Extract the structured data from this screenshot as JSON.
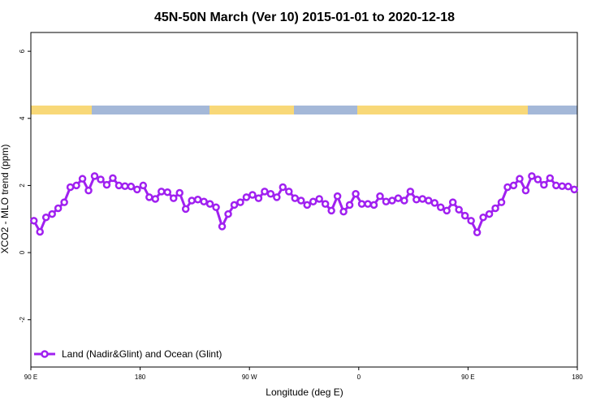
{
  "chart_data": {
    "type": "line",
    "title": "45N-50N March (Ver 10)   2015-01-01 to 2020-12-18",
    "x_label": "Longitude (deg E)",
    "y_label": "XCO2 - MLO trend (ppm)",
    "xlim": [
      90,
      540
    ],
    "xticks": [
      {
        "value": 90,
        "label": "90 E"
      },
      {
        "value": 180,
        "label": "180"
      },
      {
        "value": 270,
        "label": "90 W"
      },
      {
        "value": 360,
        "label": "0"
      },
      {
        "value": 450,
        "label": "90 E"
      },
      {
        "value": 540,
        "label": "180"
      }
    ],
    "ylim": [
      -3.41,
      6.56
    ],
    "yticks": [
      -2,
      0,
      2,
      4,
      6
    ],
    "legend": "bottom-left",
    "x": [
      92.5,
      97.5,
      102.5,
      107.5,
      112.5,
      117.5,
      122.5,
      127.5,
      132.5,
      137.5,
      142.5,
      147.5,
      152.5,
      157.5,
      162.5,
      167.5,
      172.5,
      177.5,
      182.5,
      187.5,
      192.5,
      197.5,
      202.5,
      207.5,
      212.5,
      217.5,
      222.5,
      227.5,
      232.5,
      237.5,
      242.5,
      247.5,
      252.5,
      257.5,
      262.5,
      267.5,
      272.5,
      277.5,
      282.5,
      287.5,
      292.5,
      297.5,
      302.5,
      307.5,
      312.5,
      317.5,
      322.5,
      327.5,
      332.5,
      337.5,
      342.5,
      347.5,
      352.5,
      357.5,
      362.5,
      367.5,
      372.5,
      377.5,
      382.5,
      387.5,
      392.5,
      397.5,
      402.5,
      407.5,
      412.5,
      417.5,
      422.5,
      427.5,
      432.5,
      437.5,
      442.5,
      447.5,
      452.5,
      457.5,
      462.5,
      467.5,
      472.5,
      477.5,
      482.5,
      487.5,
      492.5,
      497.5,
      502.5,
      507.5,
      512.5,
      517.5,
      522.5,
      527.5,
      532.5,
      537.5
    ],
    "series": [
      {
        "name": "Land (Nadir&Glint) and Ocean (Glint)",
        "color": "#a020f0",
        "values": [
          0.95,
          0.62,
          1.05,
          1.15,
          1.32,
          1.5,
          1.95,
          2.0,
          2.2,
          1.85,
          2.28,
          2.18,
          2.02,
          2.22,
          2.0,
          1.98,
          1.97,
          1.88,
          2.0,
          1.65,
          1.6,
          1.82,
          1.8,
          1.62,
          1.78,
          1.3,
          1.55,
          1.58,
          1.52,
          1.45,
          1.35,
          0.78,
          1.15,
          1.42,
          1.5,
          1.65,
          1.72,
          1.62,
          1.82,
          1.75,
          1.65,
          1.95,
          1.82,
          1.62,
          1.55,
          1.42,
          1.52,
          1.6,
          1.45,
          1.25,
          1.68,
          1.22,
          1.42,
          1.75,
          1.45,
          1.45,
          1.42,
          1.68,
          1.52,
          1.55,
          1.62,
          1.55,
          1.82,
          1.58,
          1.6,
          1.55,
          1.48,
          1.35,
          1.25,
          1.5,
          1.28,
          1.1,
          0.95,
          0.6,
          1.05,
          1.15,
          1.32,
          1.5,
          1.95,
          2.0,
          2.2,
          1.85,
          2.28,
          2.18,
          2.02,
          2.22,
          2.0,
          1.98,
          1.97,
          1.88
        ]
      }
    ]
  }
}
